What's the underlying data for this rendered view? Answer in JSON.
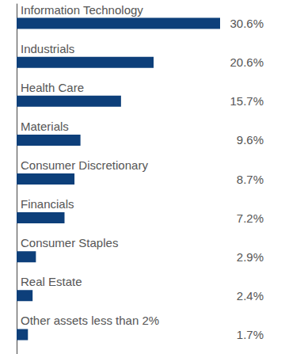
{
  "chart_data": {
    "type": "bar",
    "orientation": "horizontal",
    "categories": [
      "Information Technology",
      "Industrials",
      "Health Care",
      "Materials",
      "Consumer Discretionary",
      "Financials",
      "Consumer Staples",
      "Real Estate",
      "Other assets less than 2%"
    ],
    "values": [
      30.6,
      20.6,
      15.7,
      9.6,
      8.7,
      7.2,
      2.9,
      2.4,
      1.7
    ],
    "value_labels": [
      "30.6%",
      "20.6%",
      "15.7%",
      "9.6%",
      "8.7%",
      "7.2%",
      "2.9%",
      "2.4%",
      "1.7%"
    ],
    "color": "#0d3f7a",
    "data_labels": true,
    "tick_labels": "y",
    "grid": false
  }
}
